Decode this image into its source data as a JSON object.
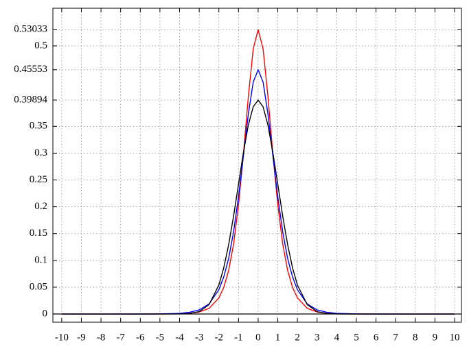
{
  "chart_data": {
    "type": "line",
    "x": [
      -10,
      -8,
      -6,
      -5,
      -4,
      -3.5,
      -3,
      -2.5,
      -2,
      -1.75,
      -1.5,
      -1.25,
      -1,
      -0.75,
      -0.5,
      -0.25,
      0,
      0.25,
      0.5,
      0.75,
      1,
      1.25,
      1.5,
      1.75,
      2,
      2.5,
      3,
      3.5,
      4,
      5,
      6,
      8,
      10
    ],
    "series": [
      {
        "color": "#ff0000",
        "values": [
          0,
          0,
          0,
          0,
          0.0004,
          0.0013,
          0.0037,
          0.0105,
          0.03,
          0.0496,
          0.0815,
          0.1307,
          0.2031,
          0.298,
          0.4051,
          0.4948,
          0.53033,
          0.4948,
          0.4051,
          0.298,
          0.2031,
          0.1307,
          0.0815,
          0.0496,
          0.03,
          0.0105,
          0.0037,
          0.0013,
          0.0004,
          0,
          0,
          0,
          0
        ]
      },
      {
        "color": "#0000ff",
        "values": [
          0,
          0,
          3e-05,
          0.0002,
          0.0012,
          0.0031,
          0.0076,
          0.0188,
          0.0453,
          0.0694,
          0.1038,
          0.1535,
          0.2185,
          0.295,
          0.3727,
          0.4326,
          0.45553,
          0.4326,
          0.3727,
          0.295,
          0.2185,
          0.1535,
          0.1038,
          0.0694,
          0.0453,
          0.0188,
          0.0076,
          0.0031,
          0.0012,
          0.0002,
          3e-05,
          0,
          0
        ]
      },
      {
        "color": "#000000",
        "values": [
          0,
          0,
          0,
          0,
          0.00013,
          0.00087,
          0.00443,
          0.01753,
          0.05399,
          0.08628,
          0.12952,
          0.18265,
          0.24197,
          0.30114,
          0.35207,
          0.38667,
          0.39894,
          0.38667,
          0.35207,
          0.30114,
          0.24197,
          0.18265,
          0.12952,
          0.08628,
          0.05399,
          0.01753,
          0.00443,
          0.00087,
          0.00013,
          0,
          0,
          0,
          0
        ]
      }
    ],
    "xlim": [
      -10.45,
      10.35
    ],
    "ylim": [
      -0.0153,
      0.5703
    ],
    "xticks": [
      -10,
      -9,
      -8,
      -7,
      -6,
      -5,
      -4,
      -3,
      -2,
      -1,
      0,
      1,
      2,
      3,
      4,
      5,
      6,
      7,
      8,
      9,
      10
    ],
    "yticks": [
      0,
      0.05,
      0.1,
      0.15,
      0.2,
      0.25,
      0.3,
      0.35,
      0.39894,
      0.45553,
      0.5,
      0.53033
    ],
    "grid": true
  }
}
